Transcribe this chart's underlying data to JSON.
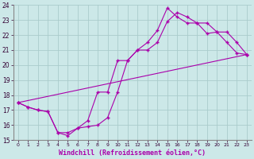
{
  "xlabel": "Windchill (Refroidissement éolien,°C)",
  "background_color": "#cce8e8",
  "grid_color": "#aacccc",
  "line_color": "#aa00aa",
  "xlim": [
    -0.5,
    23.5
  ],
  "ylim": [
    15,
    24
  ],
  "xticks": [
    0,
    1,
    2,
    3,
    4,
    5,
    6,
    7,
    8,
    9,
    10,
    11,
    12,
    13,
    14,
    15,
    16,
    17,
    18,
    19,
    20,
    21,
    22,
    23
  ],
  "yticks": [
    15,
    16,
    17,
    18,
    19,
    20,
    21,
    22,
    23,
    24
  ],
  "line1_x": [
    0,
    1,
    2,
    3,
    4,
    5,
    6,
    7,
    8,
    9,
    10,
    11,
    12,
    13,
    14,
    15,
    16,
    17,
    18,
    19,
    20,
    21,
    22,
    23
  ],
  "line1_y": [
    17.5,
    17.2,
    17.0,
    16.9,
    15.5,
    15.5,
    15.8,
    15.9,
    16.0,
    16.5,
    18.2,
    20.3,
    21.0,
    21.5,
    22.3,
    23.8,
    23.2,
    22.8,
    22.8,
    22.1,
    22.2,
    21.5,
    20.8,
    20.7
  ],
  "line2_x": [
    0,
    1,
    2,
    3,
    4,
    5,
    6,
    7,
    8,
    9,
    10,
    11,
    12,
    13,
    14,
    15,
    16,
    17,
    18,
    19,
    20,
    21,
    22,
    23
  ],
  "line2_y": [
    17.5,
    17.2,
    17.0,
    16.9,
    15.5,
    15.3,
    15.8,
    16.3,
    18.2,
    18.2,
    20.3,
    20.3,
    21.0,
    21.0,
    21.5,
    22.9,
    23.5,
    23.2,
    22.8,
    22.8,
    22.2,
    22.2,
    21.5,
    20.7
  ],
  "line3_x": [
    0,
    23
  ],
  "line3_y": [
    17.5,
    20.7
  ]
}
